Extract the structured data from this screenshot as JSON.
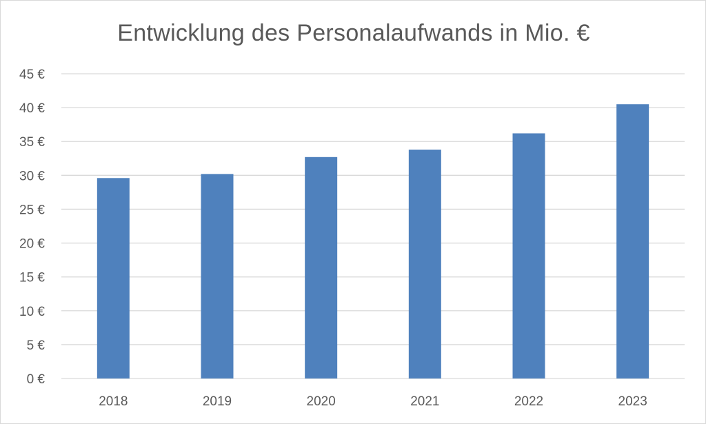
{
  "chart_data": {
    "type": "bar",
    "title": "Entwicklung des Personalaufwands in Mio. €",
    "xlabel": "",
    "ylabel": "",
    "categories": [
      "2018",
      "2019",
      "2020",
      "2021",
      "2022",
      "2023"
    ],
    "values": [
      29.6,
      30.2,
      32.7,
      33.8,
      36.2,
      40.5
    ],
    "ylim": [
      0,
      45
    ],
    "yticks": [
      0,
      5,
      10,
      15,
      20,
      25,
      30,
      35,
      40,
      45
    ],
    "ytick_suffix": " €",
    "grid": true,
    "legend": "none",
    "bar_color": "#4f81bd",
    "grid_color": "#d9d9d9",
    "text_color": "#595959"
  }
}
